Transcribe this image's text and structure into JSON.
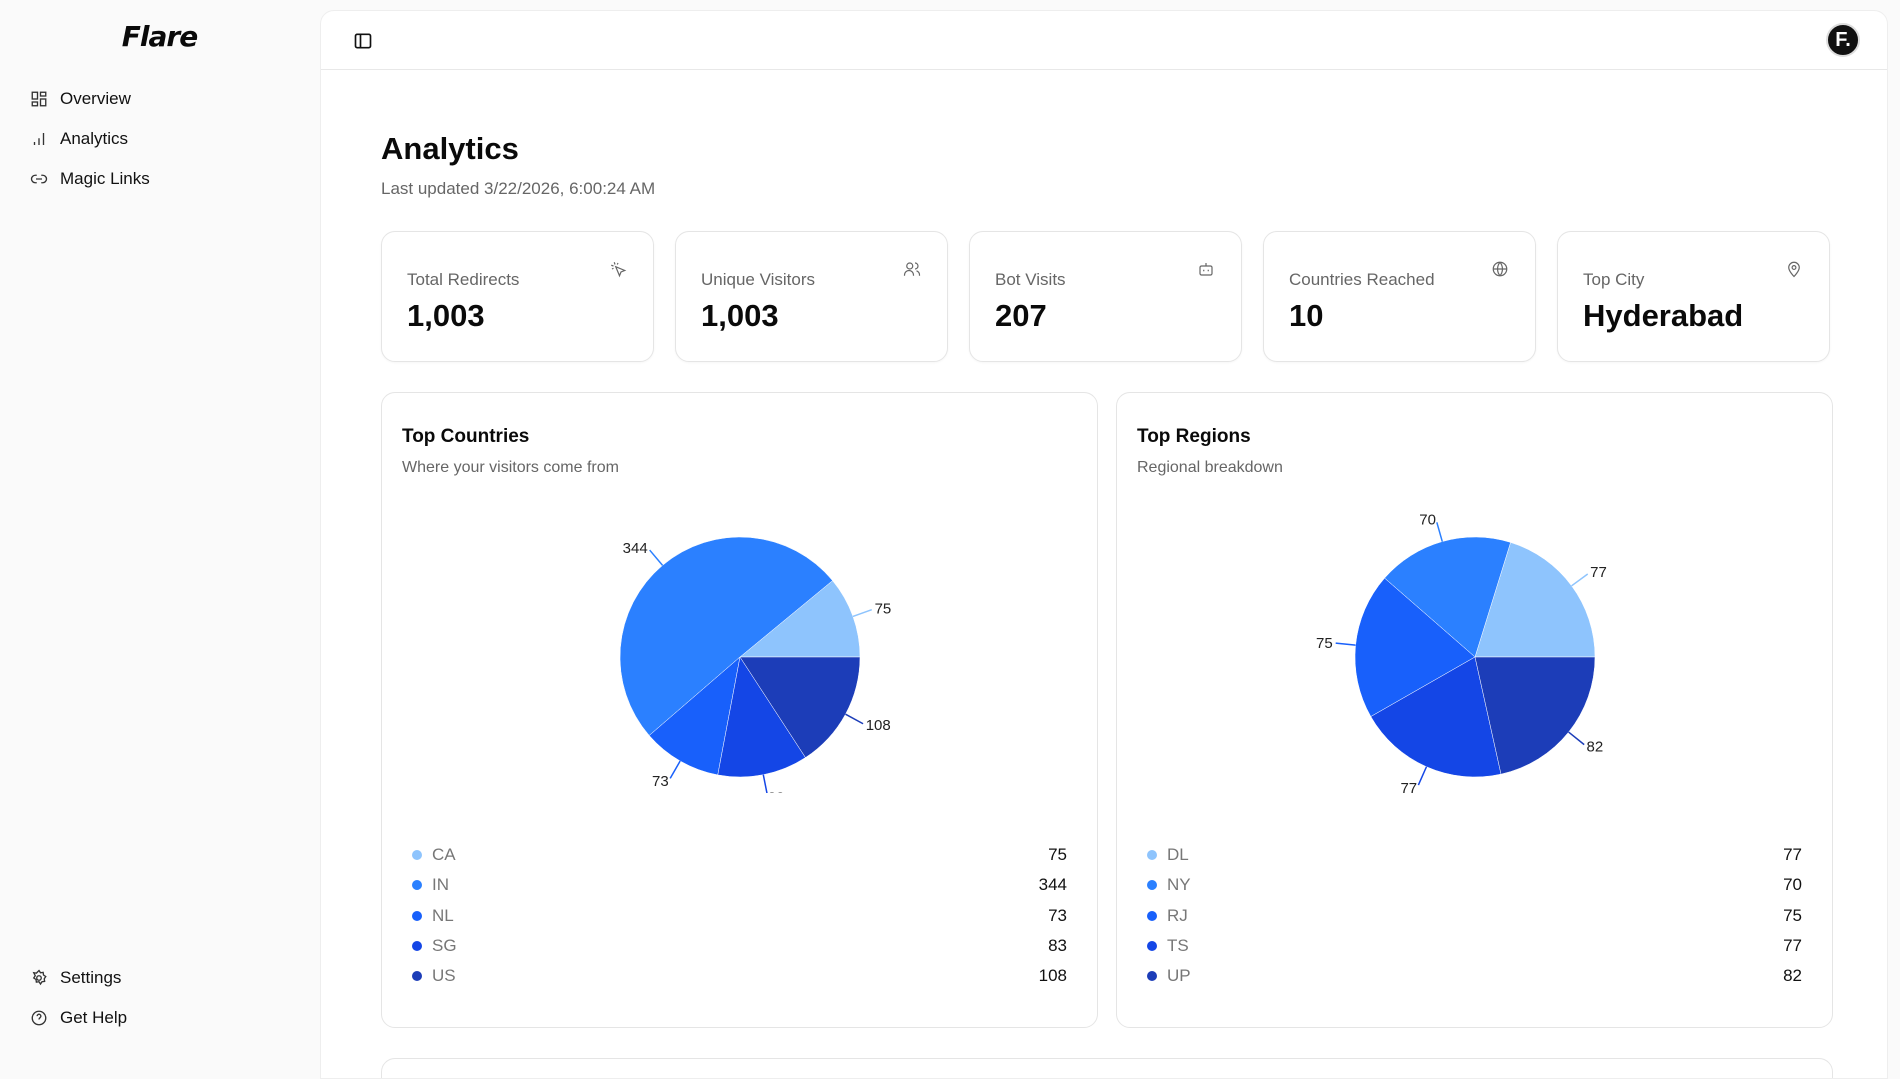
{
  "brand": "Flare",
  "sidebar": {
    "items": [
      {
        "label": "Overview",
        "icon": "grid-icon"
      },
      {
        "label": "Analytics",
        "icon": "bar-chart-icon"
      },
      {
        "label": "Magic Links",
        "icon": "link-icon"
      }
    ],
    "footer": [
      {
        "label": "Settings",
        "icon": "gear-icon"
      },
      {
        "label": "Get Help",
        "icon": "help-circle-icon"
      }
    ]
  },
  "header": {
    "avatar": "F."
  },
  "page": {
    "title": "Analytics",
    "updated": "Last updated 3/22/2026, 6:00:24 AM"
  },
  "stats": [
    {
      "label": "Total Redirects",
      "value": "1,003",
      "icon": "cursor-click-icon"
    },
    {
      "label": "Unique Visitors",
      "value": "1,003",
      "icon": "users-icon"
    },
    {
      "label": "Bot Visits",
      "value": "207",
      "icon": "bot-icon"
    },
    {
      "label": "Countries Reached",
      "value": "10",
      "icon": "globe-icon"
    },
    {
      "label": "Top City",
      "value": "Hyderabad",
      "icon": "map-pin-icon"
    }
  ],
  "chart_data": [
    {
      "type": "pie",
      "title": "Top Countries",
      "subtitle": "Where your visitors come from",
      "categories": [
        "CA",
        "IN",
        "NL",
        "SG",
        "US"
      ],
      "values": [
        75,
        344,
        73,
        83,
        108
      ],
      "colors": [
        "#8ec4fd",
        "#2b80ff",
        "#1860fb",
        "#1446e6",
        "#1c3db8"
      ]
    },
    {
      "type": "pie",
      "title": "Top Regions",
      "subtitle": "Regional breakdown",
      "categories": [
        "DL",
        "NY",
        "RJ",
        "TS",
        "UP"
      ],
      "values": [
        77,
        70,
        75,
        77,
        82
      ],
      "colors": [
        "#8ec4fd",
        "#2b80ff",
        "#1860fb",
        "#1446e6",
        "#1c3db8"
      ]
    }
  ]
}
